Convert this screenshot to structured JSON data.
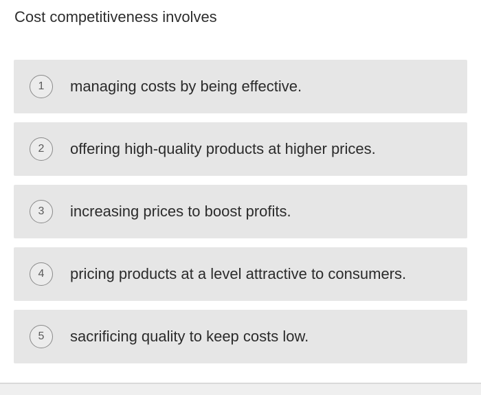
{
  "question": {
    "text": "Cost competitiveness involves"
  },
  "options": [
    {
      "number": "1",
      "text": "managing costs by being effective."
    },
    {
      "number": "2",
      "text": "offering high-quality products at higher prices."
    },
    {
      "number": "3",
      "text": "increasing prices to boost profits."
    },
    {
      "number": "4",
      "text": "pricing products at a level attractive to consumers."
    },
    {
      "number": "5",
      "text": "sacrificing quality to keep costs low."
    }
  ],
  "colors": {
    "option_background": "#e6e6e6",
    "number_border": "#8a8a8a",
    "text": "#2b2b2b"
  }
}
